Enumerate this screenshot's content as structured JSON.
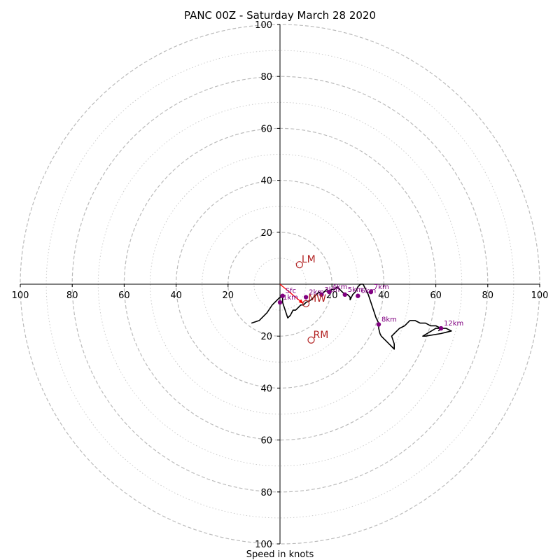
{
  "chart_data": {
    "type": "line",
    "title": "PANC 00Z - Saturday March 28 2020",
    "xlabel": "Speed in knots",
    "ylabel": "",
    "xlim": [
      -100,
      100
    ],
    "ylim": [
      -100,
      100
    ],
    "ticks_left": [
      "100",
      "80",
      "60",
      "40",
      "20"
    ],
    "ticks_right": [
      "20",
      "40",
      "60",
      "80",
      "100"
    ],
    "ticks_top": [
      "100",
      "80",
      "60",
      "40",
      "20"
    ],
    "ticks_bottom": [
      "20",
      "40",
      "60",
      "80",
      "100"
    ],
    "rings_major": [
      20,
      40,
      60,
      80,
      100
    ],
    "rings_minor": [
      10,
      30,
      50,
      70,
      90
    ],
    "colors": {
      "trace": "#000000",
      "height_marker": "#800080",
      "storm_motion": "#b22222",
      "shear_vector": "#ff0000",
      "grid": "#bbbbbb",
      "minor_grid": "#cccccc"
    },
    "hodograph": {
      "u": [
        -11,
        -8,
        -5,
        -3,
        0,
        1,
        1,
        2,
        3,
        4,
        5,
        6,
        7,
        8,
        9,
        10,
        12,
        13,
        14,
        15,
        16,
        17,
        18,
        19,
        20,
        21,
        22,
        23,
        24,
        25,
        26,
        27,
        27,
        28,
        29,
        30,
        31,
        32,
        33,
        34,
        35,
        36,
        37,
        38,
        38,
        38.5,
        39,
        40,
        41,
        42,
        43,
        44,
        44,
        43,
        44,
        46,
        48,
        50,
        52,
        54,
        56,
        58,
        60,
        62,
        64,
        66,
        62,
        56,
        55,
        60,
        62,
        61
      ],
      "v": [
        -15,
        -14,
        -11,
        -8,
        -5,
        -5,
        -7,
        -10,
        -13,
        -12,
        -10,
        -10,
        -9,
        -8,
        -8,
        -7,
        -6,
        -5,
        -4,
        -3,
        -4,
        -3,
        -2,
        -3,
        -2,
        -2,
        -1,
        -2,
        -3,
        -4,
        -4,
        -5,
        -6,
        -4,
        -3,
        -1,
        0,
        0,
        -2,
        -4,
        -7,
        -10,
        -13,
        -15,
        -17,
        -19,
        -20,
        -21,
        -22,
        -23,
        -24,
        -25,
        -23,
        -20,
        -19,
        -17,
        -16,
        -14,
        -14,
        -15,
        -15,
        -16,
        -16,
        -17,
        -17,
        -18,
        -19,
        -20,
        -20,
        -17,
        -17,
        -18
      ]
    },
    "height_markers": [
      {
        "label": "Sfc",
        "u": 1,
        "v": -4.5
      },
      {
        "label": "1km",
        "u": 0,
        "v": -7
      },
      {
        "label": "2km",
        "u": 10,
        "v": -5
      },
      {
        "label": "3km",
        "u": 16,
        "v": -4
      },
      {
        "label": "4km",
        "u": 19,
        "v": -3
      },
      {
        "label": "5km",
        "u": 25,
        "v": -4
      },
      {
        "label": "6km",
        "u": 30,
        "v": -4.5
      },
      {
        "label": "7km",
        "u": 35,
        "v": -3
      },
      {
        "label": "8km",
        "u": 38,
        "v": -15.5
      },
      {
        "label": "12km",
        "u": 62,
        "v": -17
      }
    ],
    "storm_motion": [
      {
        "label": "LM",
        "u": 7.5,
        "v": 7.5
      },
      {
        "label": "MW",
        "u": 10,
        "v": -7.5
      },
      {
        "label": "RM",
        "u": 12,
        "v": -21.5
      }
    ],
    "shear_vector": {
      "from": [
        0,
        0
      ],
      "to": [
        9,
        -7.5
      ]
    }
  }
}
